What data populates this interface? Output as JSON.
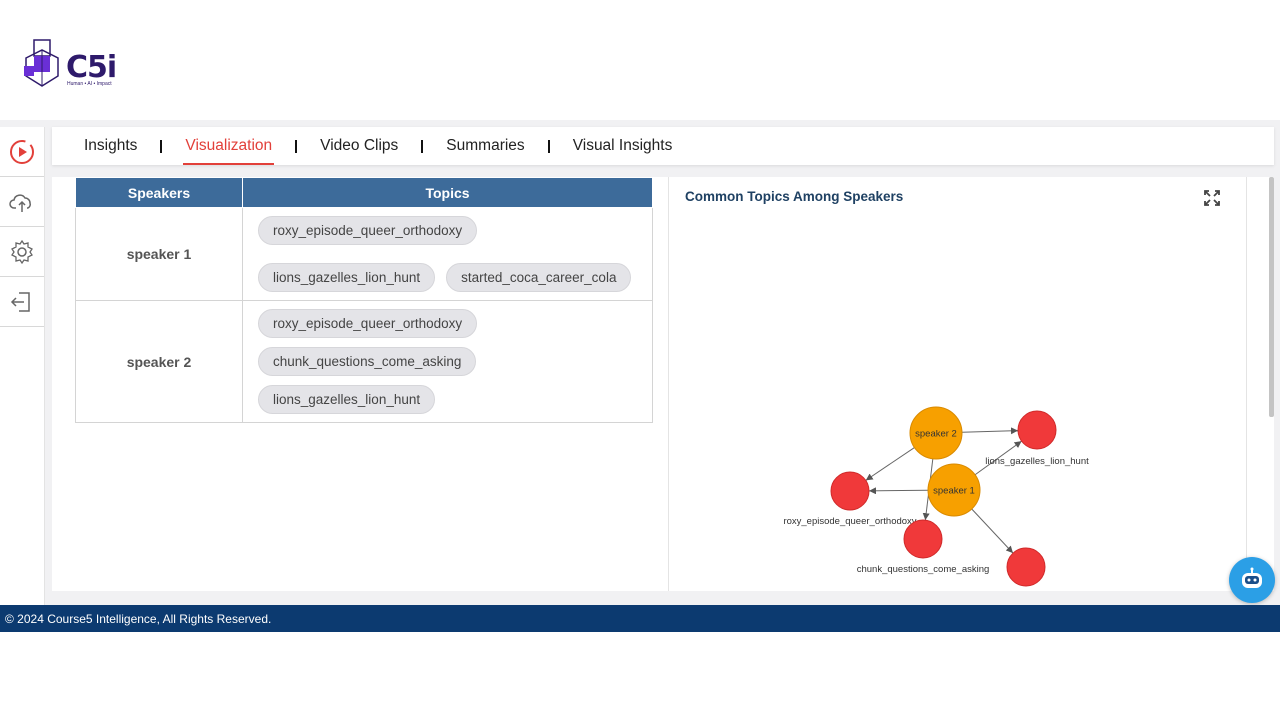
{
  "brand": {
    "logo_text": "C5i",
    "tagline": "Human • AI • Impact"
  },
  "sidebar": {
    "items": [
      {
        "icon": "play-circle-icon",
        "active": true
      },
      {
        "icon": "cloud-upload-icon",
        "active": false
      },
      {
        "icon": "gear-icon",
        "active": false
      },
      {
        "icon": "logout-icon",
        "active": false
      }
    ]
  },
  "tabs": [
    {
      "label": "Insights",
      "active": false
    },
    {
      "label": "Visualization",
      "active": true
    },
    {
      "label": "Video Clips",
      "active": false
    },
    {
      "label": "Summaries",
      "active": false
    },
    {
      "label": "Visual Insights",
      "active": false
    }
  ],
  "table": {
    "headers": [
      "Speakers",
      "Topics"
    ],
    "rows": [
      {
        "speaker": "speaker 1",
        "topics": [
          "roxy_episode_queer_orthodoxy",
          "lions_gazelles_lion_hunt",
          "started_coca_career_cola"
        ]
      },
      {
        "speaker": "speaker 2",
        "topics": [
          "roxy_episode_queer_orthodoxy",
          "chunk_questions_come_asking",
          "lions_gazelles_lion_hunt"
        ]
      }
    ]
  },
  "graph": {
    "title": "Common Topics Among Speakers",
    "nodes": [
      {
        "id": "speaker 2",
        "label": "speaker 2",
        "kind": "speaker",
        "color": "#f7a000",
        "show_inner_label": true
      },
      {
        "id": "speaker 1",
        "label": "speaker 1",
        "kind": "speaker",
        "color": "#f7a000",
        "show_inner_label": true
      },
      {
        "id": "lions",
        "label": "lions_gazelles_lion_hunt",
        "kind": "topic",
        "color": "#f0393a"
      },
      {
        "id": "roxy",
        "label": "roxy_episode_queer_orthodoxy",
        "kind": "topic",
        "color": "#f0393a"
      },
      {
        "id": "chunk",
        "label": "chunk_questions_come_asking",
        "kind": "topic",
        "color": "#f0393a"
      },
      {
        "id": "coca",
        "label": "",
        "kind": "topic",
        "color": "#f0393a"
      }
    ],
    "edges": [
      [
        "speaker 2",
        "lions"
      ],
      [
        "speaker 2",
        "roxy"
      ],
      [
        "speaker 2",
        "chunk"
      ],
      [
        "speaker 1",
        "lions"
      ],
      [
        "speaker 1",
        "roxy"
      ],
      [
        "speaker 1",
        "coca"
      ]
    ]
  },
  "footer": {
    "text": "© 2024 Course5 Intelligence, All Rights Reserved."
  },
  "colors": {
    "accent": "#e2403a",
    "header_blue": "#3d6b9a",
    "footer_blue": "#0c3a70",
    "speaker_node": "#f7a000",
    "topic_node": "#f0393a",
    "chatbot": "#2b9fe6"
  }
}
